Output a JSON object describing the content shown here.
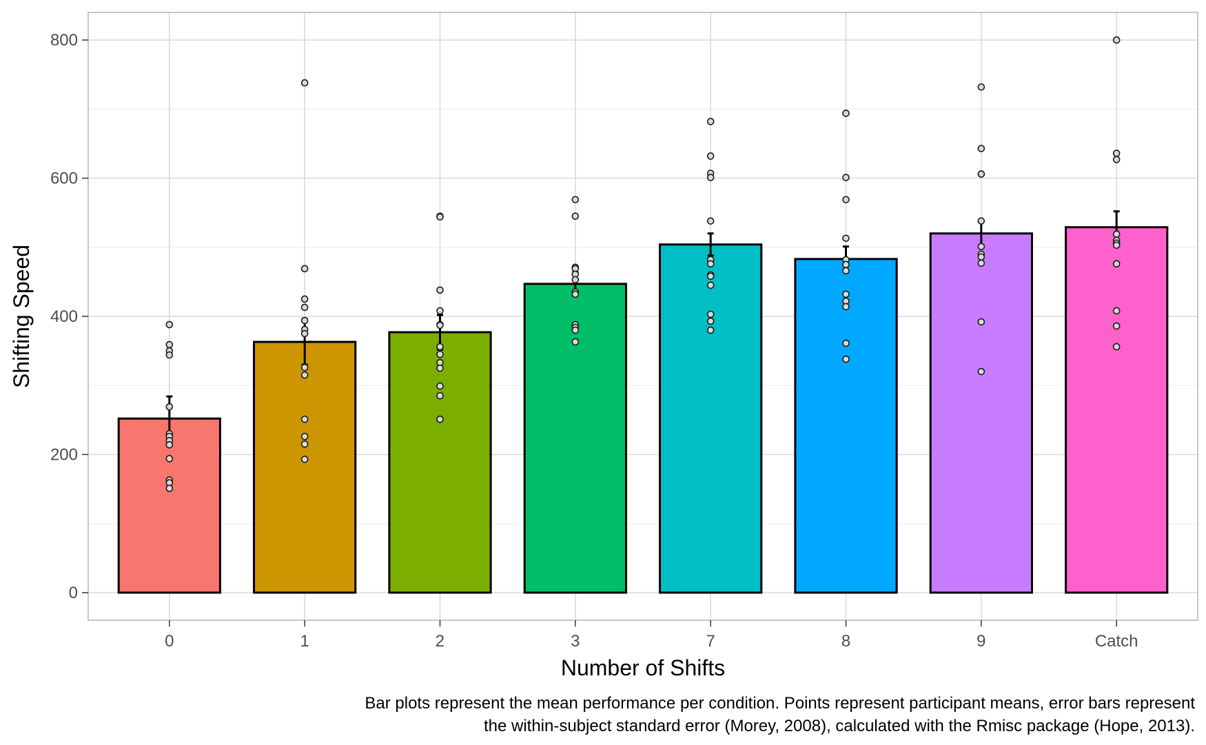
{
  "chart_data": {
    "type": "bar",
    "title": "",
    "xlabel": "Number of Shifts",
    "ylabel": "Shifting Speed",
    "ylim": [
      -40,
      840
    ],
    "yticks": [
      0,
      200,
      400,
      600,
      800
    ],
    "grid": true,
    "legend": "none",
    "categories": [
      "0",
      "1",
      "2",
      "3",
      "7",
      "8",
      "9",
      "Catch"
    ],
    "colors": [
      "#F8766D",
      "#CD9600",
      "#7CAE00",
      "#00BE67",
      "#00BFC4",
      "#00A9FF",
      "#C77CFF",
      "#FF61CC"
    ],
    "values": [
      252,
      363,
      377,
      447,
      504,
      483,
      520,
      529
    ],
    "error": [
      32,
      33,
      25,
      17,
      16,
      18,
      17,
      23
    ],
    "points": [
      [
        388,
        359,
        350,
        344,
        269,
        230,
        226,
        220,
        214,
        194,
        163,
        159,
        151
      ],
      [
        738,
        469,
        425,
        413,
        394,
        381,
        375,
        326,
        315,
        251,
        226,
        215,
        193
      ],
      [
        545,
        544,
        438,
        408,
        388,
        387,
        356,
        345,
        333,
        325,
        299,
        285,
        251
      ],
      [
        569,
        545,
        471,
        469,
        461,
        453,
        435,
        432,
        388,
        384,
        380,
        363
      ],
      [
        682,
        632,
        607,
        601,
        538,
        482,
        476,
        460,
        458,
        445,
        403,
        393,
        380
      ],
      [
        694,
        601,
        569,
        513,
        482,
        475,
        466,
        432,
        422,
        414,
        361,
        338
      ],
      [
        732,
        643,
        606,
        606,
        538,
        501,
        490,
        486,
        477,
        392,
        320
      ],
      [
        800,
        636,
        627,
        519,
        510,
        506,
        503,
        476,
        408,
        386,
        356
      ]
    ],
    "caption": [
      "Bar plots represent the mean performance per condition. Points represent participant means, error bars represent",
      "the within-subject standard error (Morey, 2008), calculated with the Rmisc package (Hope, 2013)."
    ]
  }
}
